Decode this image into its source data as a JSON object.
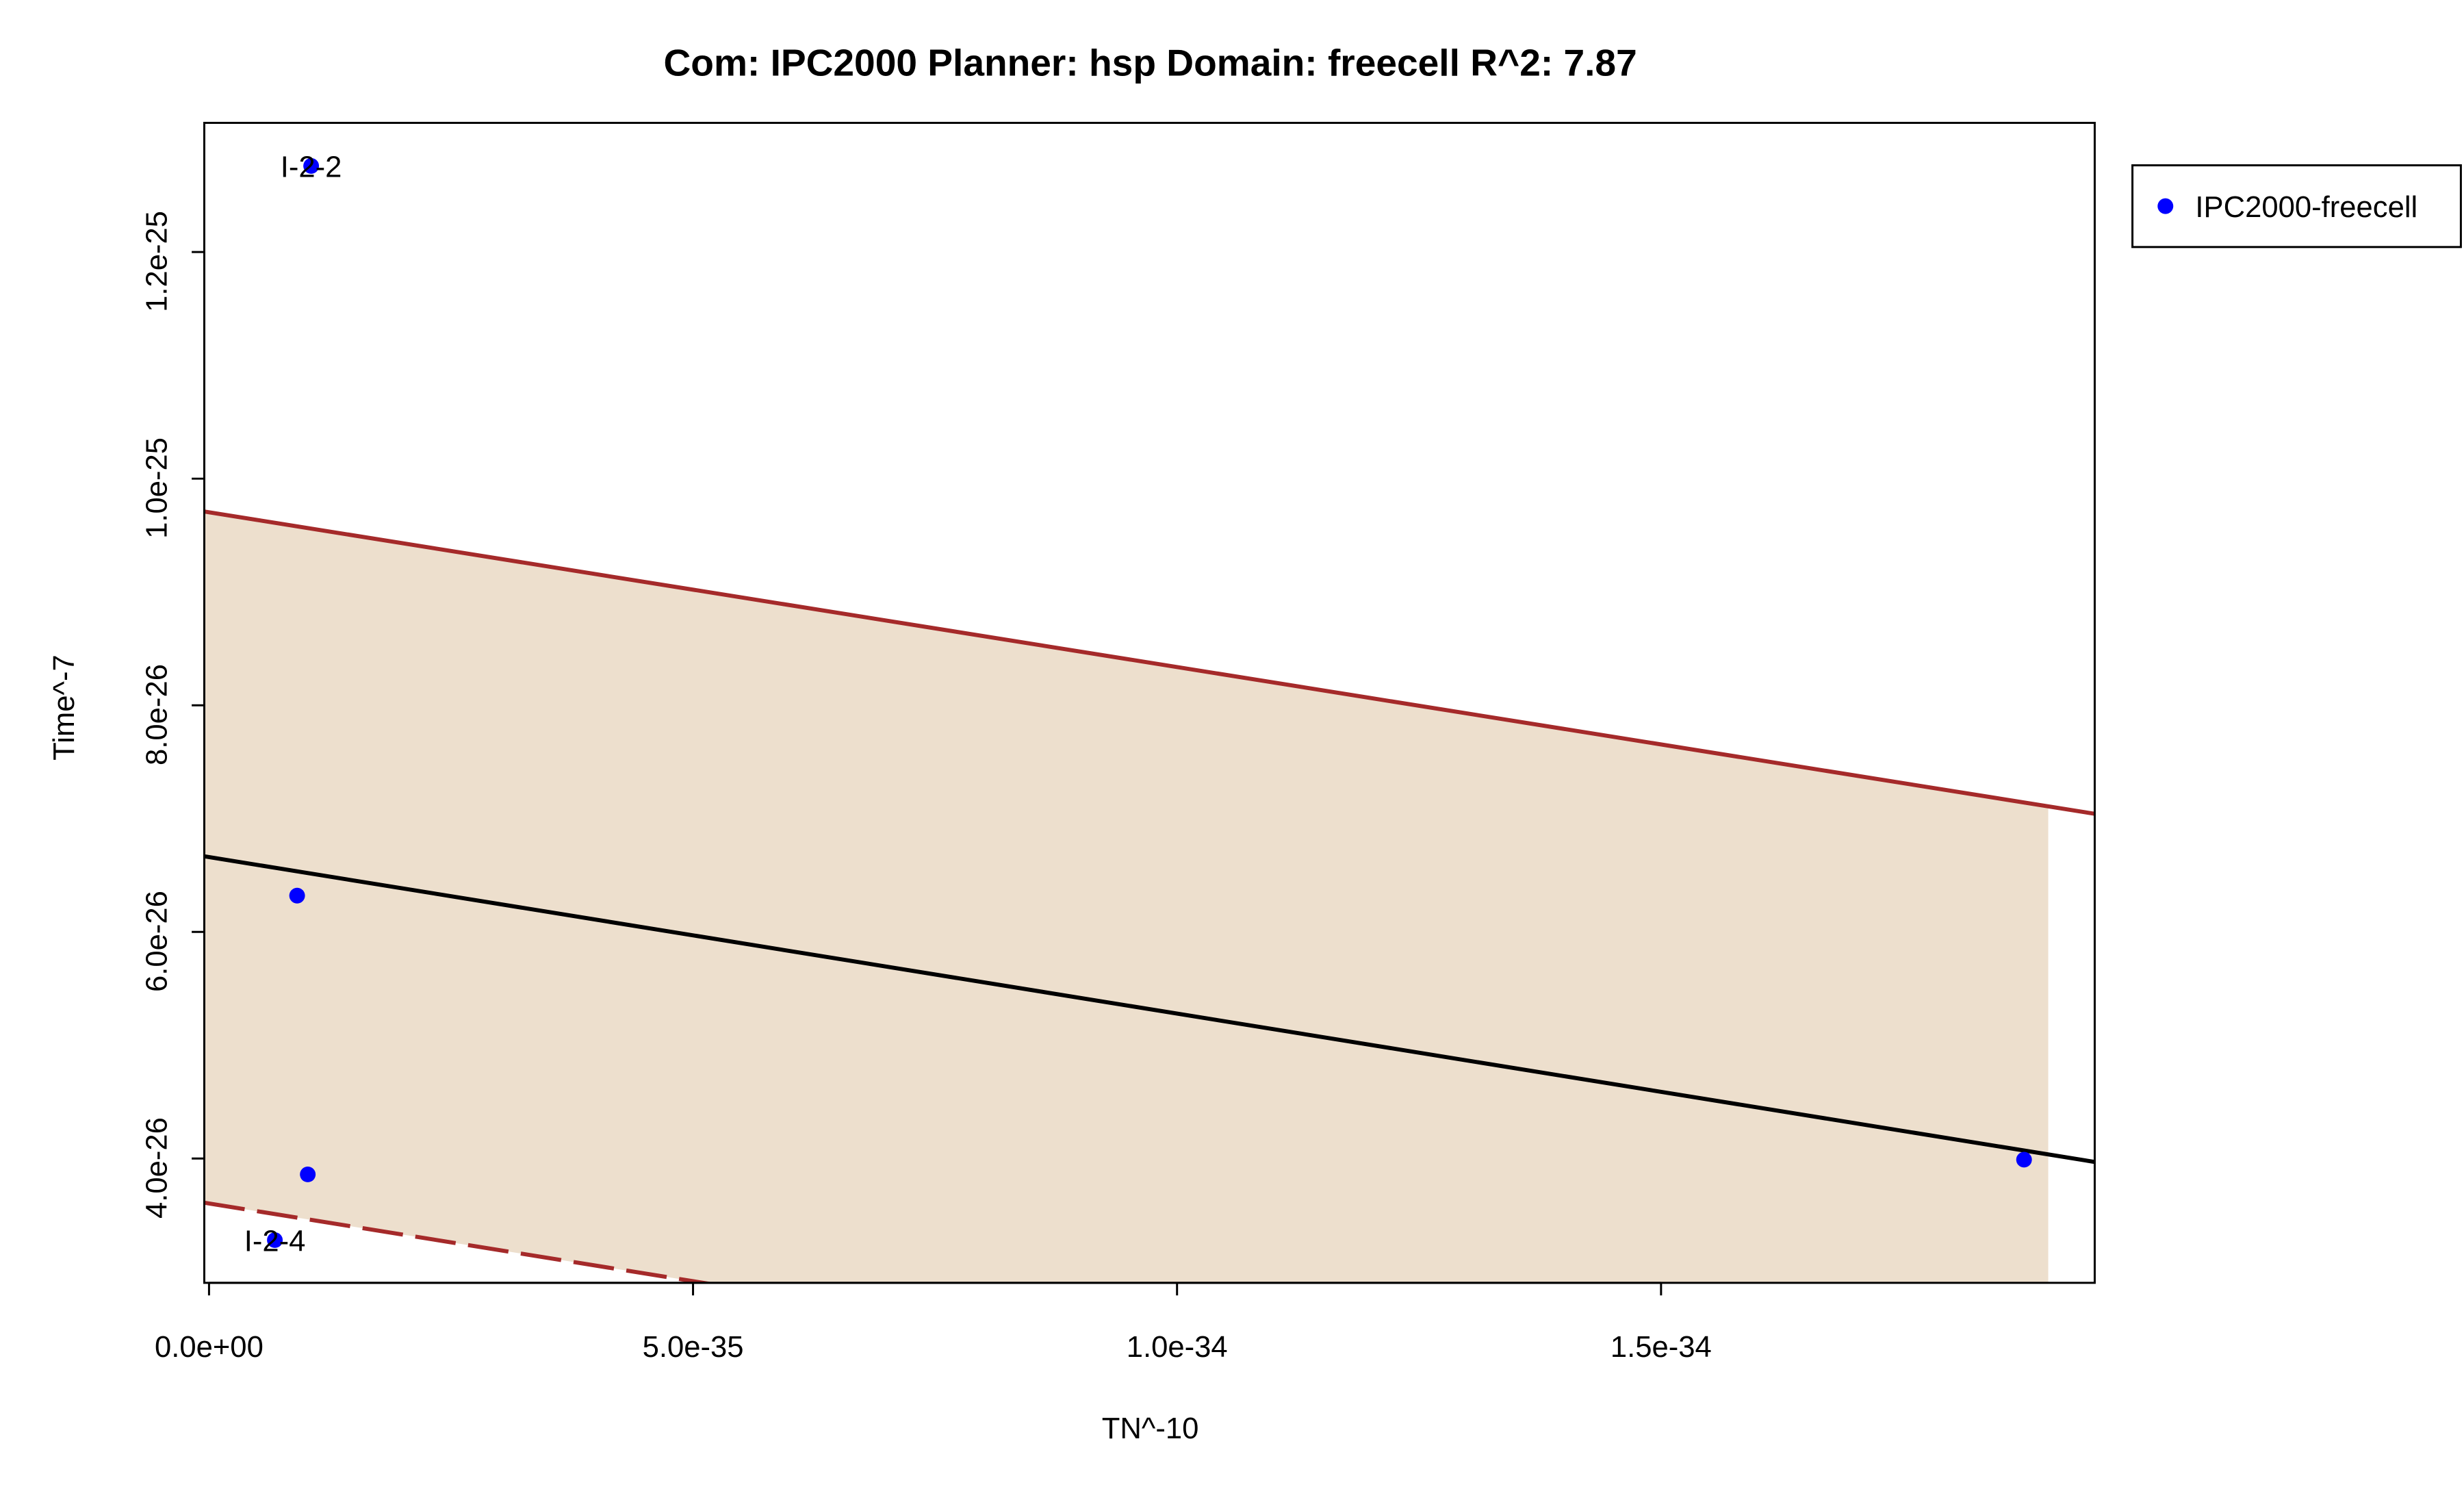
{
  "chart_data": {
    "type": "scatter",
    "title": "Com: IPC2000 Planner: hsp Domain: freecell R^2: 7.87",
    "x_label": "TN^-10",
    "y_label": "Time^-7",
    "xlim": [
      -4.9e-37,
      1.948e-34
    ],
    "ylim": [
      2.903e-26,
      1.314e-25
    ],
    "xticks": [
      {
        "value": 0,
        "label": "0.0e+00"
      },
      {
        "value": 5e-35,
        "label": "5.0e-35"
      },
      {
        "value": 1e-34,
        "label": "1.0e-34"
      },
      {
        "value": 1.5e-34,
        "label": "1.5e-34"
      }
    ],
    "yticks": [
      {
        "value": 4e-26,
        "label": "4.0e-26"
      },
      {
        "value": 6e-26,
        "label": "6.0e-26"
      },
      {
        "value": 8e-26,
        "label": "8.0e-26"
      },
      {
        "value": 1e-25,
        "label": "1.0e-25"
      },
      {
        "value": 1.2e-25,
        "label": "1.2e-25"
      }
    ],
    "series": [
      {
        "name": "IPC2000-freecell",
        "color": "#0000ff",
        "x": [
          1.055e-35,
          9.1e-36,
          1.02e-35,
          6.8e-36,
          1.875e-34
        ],
        "values": [
          1.276e-25,
          6.32e-26,
          3.86e-26,
          3.28e-26,
          3.99e-26
        ],
        "point_labels": [
          "I-2-2",
          null,
          null,
          "I-2-4",
          null
        ]
      }
    ],
    "fit": {
      "color": "#000000",
      "x": [
        -4.9e-37,
        1.948e-34
      ],
      "values": [
        6.667e-26,
        3.97e-26
      ]
    },
    "band": {
      "color": "#eddfcd",
      "line_color": "#a52a2a",
      "x": [
        -4.9e-37,
        1.9e-34
      ],
      "upper": [
        9.71e-26,
        7.108e-26
      ],
      "lower": [
        3.61e-26,
        9.97e-27
      ]
    },
    "legend": "top-right-outside"
  }
}
